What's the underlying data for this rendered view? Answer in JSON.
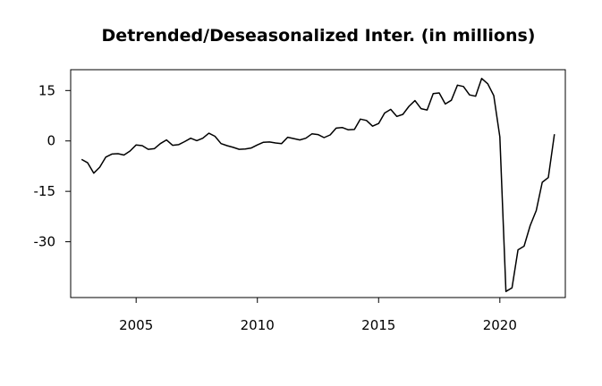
{
  "chart_data": {
    "type": "line",
    "title": "Detrended/Deseasonalized Inter. (in millions)",
    "xlabel": "",
    "ylabel": "",
    "xlim": [
      2002.3,
      2022.7
    ],
    "ylim": [
      -46.6,
      21.2
    ],
    "x_ticks": [
      2005,
      2010,
      2015,
      2020
    ],
    "y_ticks": [
      15,
      0,
      -15,
      -30
    ],
    "grid": false,
    "line_color": "#000000",
    "series": [
      {
        "x": [
          2002.75,
          2003.0,
          2003.25,
          2003.5,
          2003.75,
          2004.0,
          2004.25,
          2004.5,
          2004.75,
          2005.0,
          2005.25,
          2005.5,
          2005.75,
          2006.0,
          2006.25,
          2006.5,
          2006.75,
          2007.0,
          2007.25,
          2007.5,
          2007.75,
          2008.0,
          2008.25,
          2008.5,
          2008.75,
          2009.0,
          2009.25,
          2009.5,
          2009.75,
          2010.0,
          2010.25,
          2010.5,
          2010.75,
          2011.0,
          2011.25,
          2011.5,
          2011.75,
          2012.0,
          2012.25,
          2012.5,
          2012.75,
          2013.0,
          2013.25,
          2013.5,
          2013.75,
          2014.0,
          2014.25,
          2014.5,
          2014.75,
          2015.0,
          2015.25,
          2015.5,
          2015.75,
          2016.0,
          2016.25,
          2016.5,
          2016.75,
          2017.0,
          2017.25,
          2017.5,
          2017.75,
          2018.0,
          2018.25,
          2018.5,
          2018.75,
          2019.0,
          2019.25,
          2019.5,
          2019.75,
          2020.0,
          2020.25,
          2020.5,
          2020.75,
          2021.0,
          2021.25,
          2021.5,
          2021.75,
          2022.0,
          2022.25
        ],
        "values": [
          -5.5,
          -6.5,
          -9.6,
          -7.8,
          -4.8,
          -3.9,
          -3.8,
          -4.2,
          -3.0,
          -1.2,
          -1.4,
          -2.5,
          -2.3,
          -0.8,
          0.3,
          -1.3,
          -1.1,
          -0.2,
          0.8,
          0.1,
          0.8,
          2.3,
          1.4,
          -0.8,
          -1.4,
          -1.9,
          -2.5,
          -2.4,
          -2.1,
          -1.2,
          -0.4,
          -0.3,
          -0.6,
          -0.8,
          1.1,
          0.7,
          0.3,
          0.8,
          2.1,
          1.9,
          1.0,
          1.8,
          3.8,
          4.0,
          3.3,
          3.4,
          6.5,
          6.1,
          4.4,
          5.2,
          8.3,
          9.4,
          7.3,
          7.9,
          10.3,
          12.0,
          9.6,
          9.2,
          14.1,
          14.3,
          11.0,
          12.1,
          16.6,
          16.2,
          13.7,
          13.3,
          18.6,
          17.0,
          13.5,
          1.2,
          -44.8,
          -43.7,
          -32.4,
          -31.3,
          -25.2,
          -20.7,
          -12.3,
          -10.9,
          2.0
        ]
      }
    ]
  }
}
